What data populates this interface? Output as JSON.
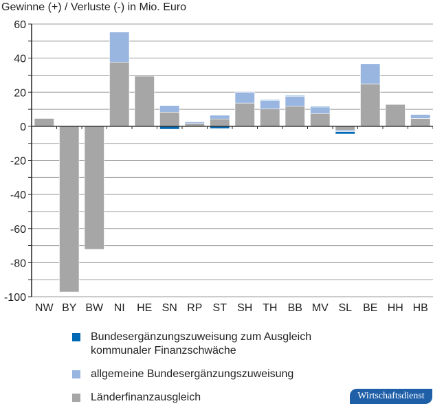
{
  "chart_data": {
    "type": "bar",
    "stacked": true,
    "ylabel": "Gewinne (+) / Verluste (-) in Mio. Euro",
    "ylim": [
      -100,
      60
    ],
    "yticks": [
      60,
      40,
      20,
      0,
      -20,
      -40,
      -60,
      -80,
      -100
    ],
    "grid": true,
    "categories": [
      "NW",
      "BY",
      "BW",
      "NI",
      "HE",
      "SN",
      "RP",
      "ST",
      "SH",
      "TH",
      "BB",
      "MV",
      "SL",
      "BE",
      "HH",
      "HB"
    ],
    "series": [
      {
        "name": "Länderfinanzausgleich",
        "color": "#a6a6a6",
        "values": [
          4.6,
          -97.2,
          -72.2,
          37.6,
          29.4,
          8.3,
          1.7,
          4.3,
          13.6,
          10.2,
          11.8,
          7.5,
          -2.3,
          24.9,
          12.8,
          4.6
        ]
      },
      {
        "name": "allgemeine Bundesergänzungszuweisung",
        "color": "#99b6e1",
        "values": [
          0,
          0,
          0,
          17.7,
          0,
          3.9,
          0.9,
          2.2,
          6.4,
          4.9,
          5.9,
          3.8,
          -0.8,
          11.8,
          0,
          2.3
        ]
      },
      {
        "name": "Bundesergänzungszuweisung zum Ausgleich kommunaler Finanzschwäche",
        "color": "#0068b4",
        "values": [
          0,
          0,
          0,
          0,
          0,
          -1.7,
          0,
          -1.3,
          0,
          0.4,
          0.3,
          0.4,
          -1.4,
          0,
          0,
          0
        ]
      }
    ],
    "legend_placement": "bottom",
    "legend": [
      "Bundesergänzungszuweisung zum Ausgleich kommunaler Finanzschwäche",
      "allgemeine Bundesergänzungszuweisung",
      "Länderfinanzausgleich"
    ]
  },
  "legend_line1": "Bundesergänzungszuweisung zum Ausgleich",
  "legend_line2": "kommunaler Finanzschwäche",
  "badge": "Wirtschaftsdienst"
}
